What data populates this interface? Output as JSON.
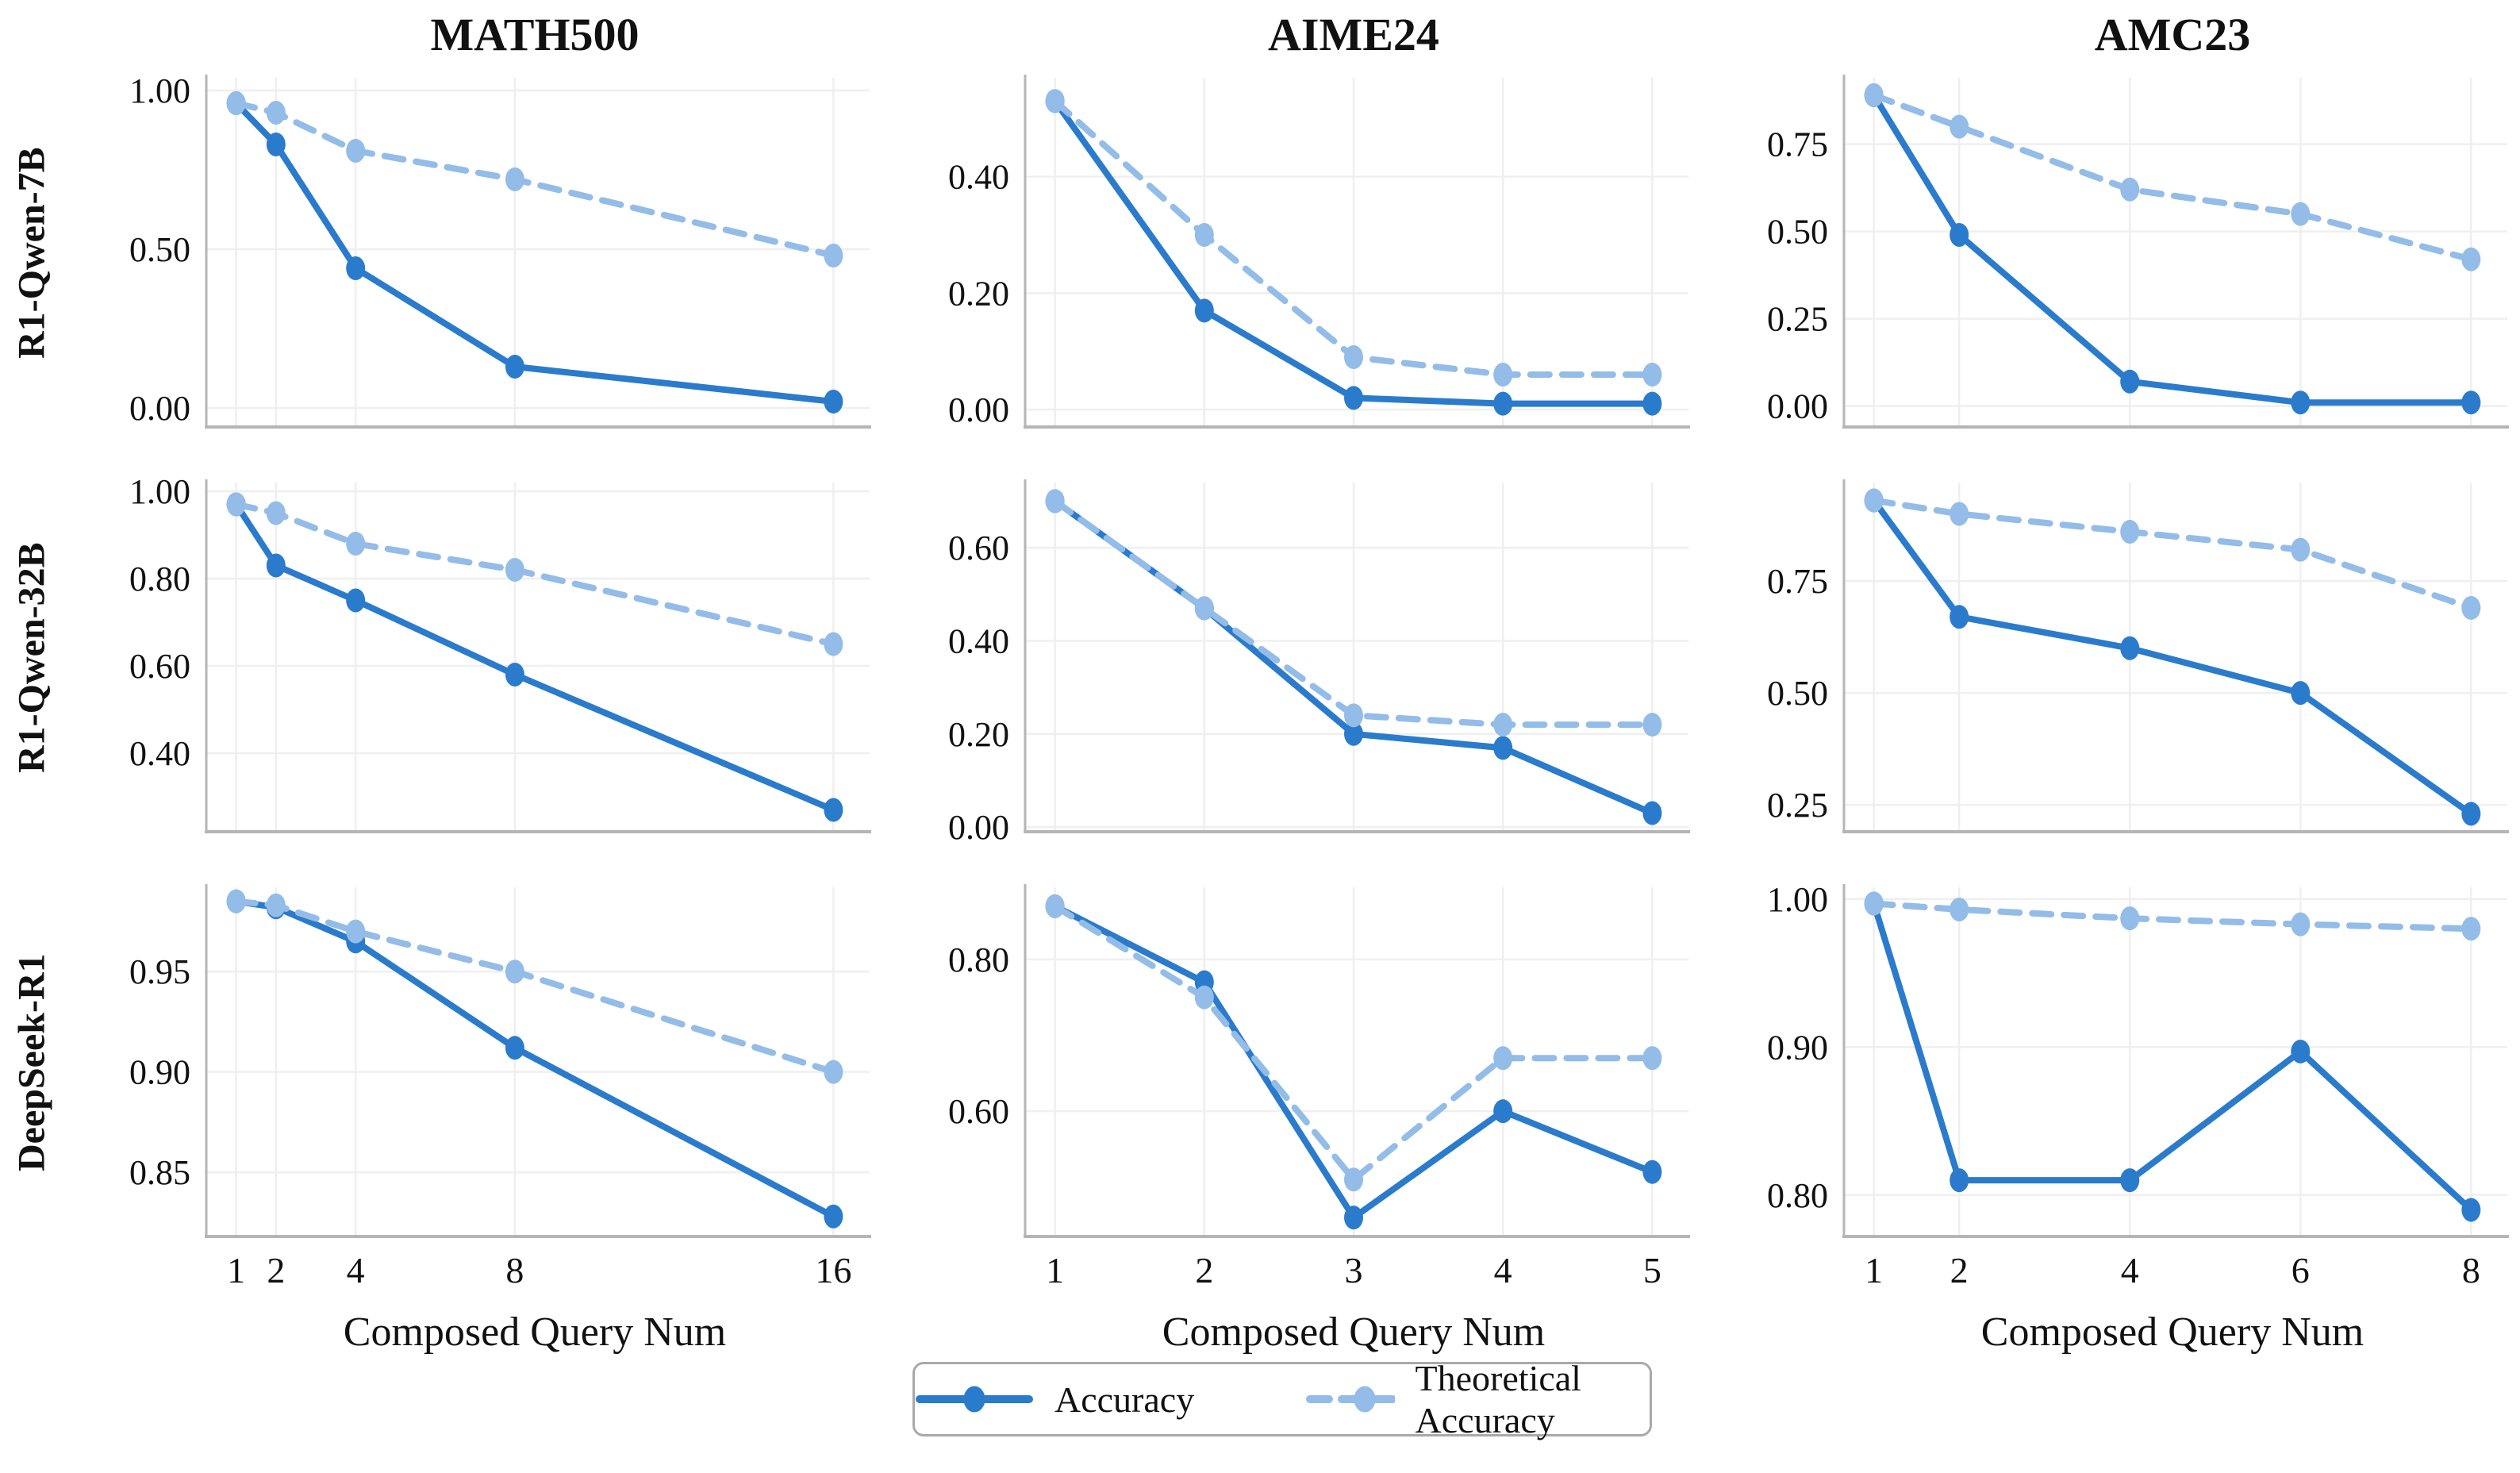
{
  "columns": [
    "MATH500",
    "AIME24",
    "AMC23"
  ],
  "rows": [
    "R1-Qwen-7B",
    "R1-Qwen-32B",
    "DeepSeek-R1"
  ],
  "xlabel": "Composed Query Num",
  "legend": {
    "accuracy_label": "Accuracy",
    "theoretical_label": "Theoretical Accuracy"
  },
  "colors": {
    "accuracy": "#2b7bcd",
    "theoretical": "#93bce8",
    "grid": "#efefef",
    "spine": "#b5b5b5",
    "text": "#111111",
    "legend_border": "#a9a9a9"
  },
  "chart_data": [
    {
      "type": "line",
      "title": "MATH500",
      "row": "R1-Qwen-7B",
      "x": [
        1,
        2,
        4,
        8,
        16
      ],
      "xtick_labels": [
        "1",
        "2",
        "4",
        "8",
        "16"
      ],
      "show_xticks": false,
      "ytick_values": [
        1.0,
        0.5,
        0.0
      ],
      "ytick_labels": [
        "1.00",
        "0.50",
        "0.00"
      ],
      "ylim": [
        -0.06,
        1.04
      ],
      "grid": true,
      "legend_position": "shared-bottom",
      "series": [
        {
          "name": "Accuracy",
          "values": [
            0.96,
            0.83,
            0.44,
            0.13,
            0.02
          ]
        },
        {
          "name": "Theoretical Accuracy",
          "values": [
            0.96,
            0.93,
            0.81,
            0.72,
            0.48
          ]
        }
      ]
    },
    {
      "type": "line",
      "title": "AIME24",
      "row": "R1-Qwen-7B",
      "x": [
        1,
        2,
        3,
        4,
        5
      ],
      "xtick_labels": [
        "1",
        "2",
        "3",
        "4",
        "5"
      ],
      "show_xticks": false,
      "ytick_values": [
        0.4,
        0.2,
        0.0
      ],
      "ytick_labels": [
        "0.40",
        "0.20",
        "0.00"
      ],
      "ylim": [
        -0.03,
        0.57
      ],
      "grid": true,
      "legend_position": "shared-bottom",
      "series": [
        {
          "name": "Accuracy",
          "values": [
            0.53,
            0.17,
            0.02,
            0.01,
            0.01
          ]
        },
        {
          "name": "Theoretical Accuracy",
          "values": [
            0.53,
            0.3,
            0.09,
            0.06,
            0.06
          ]
        }
      ]
    },
    {
      "type": "line",
      "title": "AMC23",
      "row": "R1-Qwen-7B",
      "x": [
        1,
        2,
        4,
        6,
        8
      ],
      "xtick_labels": [
        "1",
        "2",
        "4",
        "6",
        "8"
      ],
      "show_xticks": false,
      "ytick_values": [
        0.75,
        0.5,
        0.25,
        0.0
      ],
      "ytick_labels": [
        "0.75",
        "0.50",
        "0.25",
        "0.00"
      ],
      "ylim": [
        -0.06,
        0.94
      ],
      "grid": true,
      "legend_position": "shared-bottom",
      "series": [
        {
          "name": "Accuracy",
          "values": [
            0.89,
            0.49,
            0.07,
            0.01,
            0.01
          ]
        },
        {
          "name": "Theoretical Accuracy",
          "values": [
            0.89,
            0.8,
            0.62,
            0.55,
            0.42
          ]
        }
      ]
    },
    {
      "type": "line",
      "title": "MATH500",
      "row": "R1-Qwen-32B",
      "x": [
        1,
        2,
        4,
        8,
        16
      ],
      "xtick_labels": [
        "1",
        "2",
        "4",
        "8",
        "16"
      ],
      "show_xticks": false,
      "ytick_values": [
        1.0,
        0.8,
        0.6,
        0.4
      ],
      "ytick_labels": [
        "1.00",
        "0.80",
        "0.60",
        "0.40"
      ],
      "ylim": [
        0.22,
        1.02
      ],
      "grid": true,
      "legend_position": "shared-bottom",
      "series": [
        {
          "name": "Accuracy",
          "values": [
            0.97,
            0.83,
            0.75,
            0.58,
            0.27
          ]
        },
        {
          "name": "Theoretical Accuracy",
          "values": [
            0.97,
            0.95,
            0.88,
            0.82,
            0.65
          ]
        }
      ]
    },
    {
      "type": "line",
      "title": "AIME24",
      "row": "R1-Qwen-32B",
      "x": [
        1,
        2,
        3,
        4,
        5
      ],
      "xtick_labels": [
        "1",
        "2",
        "3",
        "4",
        "5"
      ],
      "show_xticks": false,
      "ytick_values": [
        0.6,
        0.4,
        0.2,
        0.0
      ],
      "ytick_labels": [
        "0.60",
        "0.40",
        "0.20",
        "0.00"
      ],
      "ylim": [
        -0.01,
        0.74
      ],
      "grid": true,
      "legend_position": "shared-bottom",
      "series": [
        {
          "name": "Accuracy",
          "values": [
            0.7,
            0.47,
            0.2,
            0.17,
            0.03
          ]
        },
        {
          "name": "Theoretical Accuracy",
          "values": [
            0.7,
            0.47,
            0.24,
            0.22,
            0.22
          ]
        }
      ]
    },
    {
      "type": "line",
      "title": "AMC23",
      "row": "R1-Qwen-32B",
      "x": [
        1,
        2,
        4,
        6,
        8
      ],
      "xtick_labels": [
        "1",
        "2",
        "4",
        "6",
        "8"
      ],
      "show_xticks": false,
      "ytick_values": [
        0.75,
        0.5,
        0.25
      ],
      "ytick_labels": [
        "0.75",
        "0.50",
        "0.25"
      ],
      "ylim": [
        0.19,
        0.97
      ],
      "grid": true,
      "legend_position": "shared-bottom",
      "series": [
        {
          "name": "Accuracy",
          "values": [
            0.93,
            0.67,
            0.6,
            0.5,
            0.23
          ]
        },
        {
          "name": "Theoretical Accuracy",
          "values": [
            0.93,
            0.9,
            0.86,
            0.82,
            0.69
          ]
        }
      ]
    },
    {
      "type": "line",
      "title": "MATH500",
      "row": "DeepSeek-R1",
      "x": [
        1,
        2,
        4,
        8,
        16
      ],
      "xtick_labels": [
        "1",
        "2",
        "4",
        "8",
        "16"
      ],
      "show_xticks": true,
      "ytick_values": [
        0.95,
        0.9,
        0.85
      ],
      "ytick_labels": [
        "0.95",
        "0.90",
        "0.85"
      ],
      "ylim": [
        0.818,
        0.992
      ],
      "grid": true,
      "legend_position": "shared-bottom",
      "series": [
        {
          "name": "Accuracy",
          "values": [
            0.985,
            0.982,
            0.965,
            0.912,
            0.828
          ]
        },
        {
          "name": "Theoretical Accuracy",
          "values": [
            0.985,
            0.983,
            0.97,
            0.95,
            0.9
          ]
        }
      ]
    },
    {
      "type": "line",
      "title": "AIME24",
      "row": "DeepSeek-R1",
      "x": [
        1,
        2,
        3,
        4,
        5
      ],
      "xtick_labels": [
        "1",
        "2",
        "3",
        "4",
        "5"
      ],
      "show_xticks": true,
      "ytick_values": [
        0.8,
        0.6
      ],
      "ytick_labels": [
        "0.80",
        "0.60"
      ],
      "ylim": [
        0.435,
        0.895
      ],
      "grid": true,
      "legend_position": "shared-bottom",
      "series": [
        {
          "name": "Accuracy",
          "values": [
            0.87,
            0.77,
            0.46,
            0.6,
            0.52
          ]
        },
        {
          "name": "Theoretical Accuracy",
          "values": [
            0.87,
            0.75,
            0.51,
            0.67,
            0.67
          ]
        }
      ]
    },
    {
      "type": "line",
      "title": "AMC23",
      "row": "DeepSeek-R1",
      "x": [
        1,
        2,
        4,
        6,
        8
      ],
      "xtick_labels": [
        "1",
        "2",
        "4",
        "6",
        "8"
      ],
      "show_xticks": true,
      "ytick_values": [
        1.0,
        0.9,
        0.8
      ],
      "ytick_labels": [
        "1.00",
        "0.90",
        "0.80"
      ],
      "ylim": [
        0.772,
        1.008
      ],
      "grid": true,
      "legend_position": "shared-bottom",
      "series": [
        {
          "name": "Accuracy",
          "values": [
            0.997,
            0.81,
            0.81,
            0.897,
            0.79
          ]
        },
        {
          "name": "Theoretical Accuracy",
          "values": [
            0.997,
            0.993,
            0.987,
            0.983,
            0.98
          ]
        }
      ]
    }
  ]
}
